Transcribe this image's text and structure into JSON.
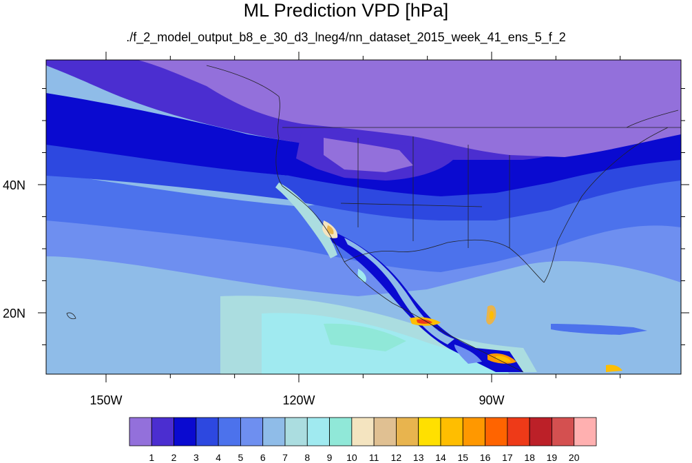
{
  "title": "ML Prediction VPD [hPa]",
  "subtitle": "./f_2_model_output_b8_e_30_d3_lneg4/nn_dataset_2015_week_41_ens_5_f_2",
  "map": {
    "lon_ticks": [
      {
        "lon": -150,
        "label": "150W"
      },
      {
        "lon": -120,
        "label": "120W"
      },
      {
        "lon": -90,
        "label": "90W"
      }
    ],
    "lat_ticks": [
      {
        "lat": 40,
        "label": "40N"
      },
      {
        "lat": 20,
        "label": "20N"
      }
    ]
  },
  "colorbar": {
    "colors": [
      "#9370db",
      "#4b2ed0",
      "#0a0ad0",
      "#2d48e0",
      "#4c72ec",
      "#6e8ff0",
      "#8fbce8",
      "#abdde0",
      "#a0eaf0",
      "#90e8d8",
      "#f4e4c0",
      "#e0c092",
      "#e8b44e",
      "#ffe000",
      "#ffbe00",
      "#ff9800",
      "#ff6400",
      "#ee3a18",
      "#bc2028",
      "#d45050",
      "#ffb0b0"
    ],
    "labels": [
      "1",
      "2",
      "3",
      "4",
      "5",
      "6",
      "7",
      "8",
      "9",
      "10",
      "11",
      "12",
      "13",
      "14",
      "15",
      "16",
      "17",
      "18",
      "19",
      "20"
    ]
  }
}
